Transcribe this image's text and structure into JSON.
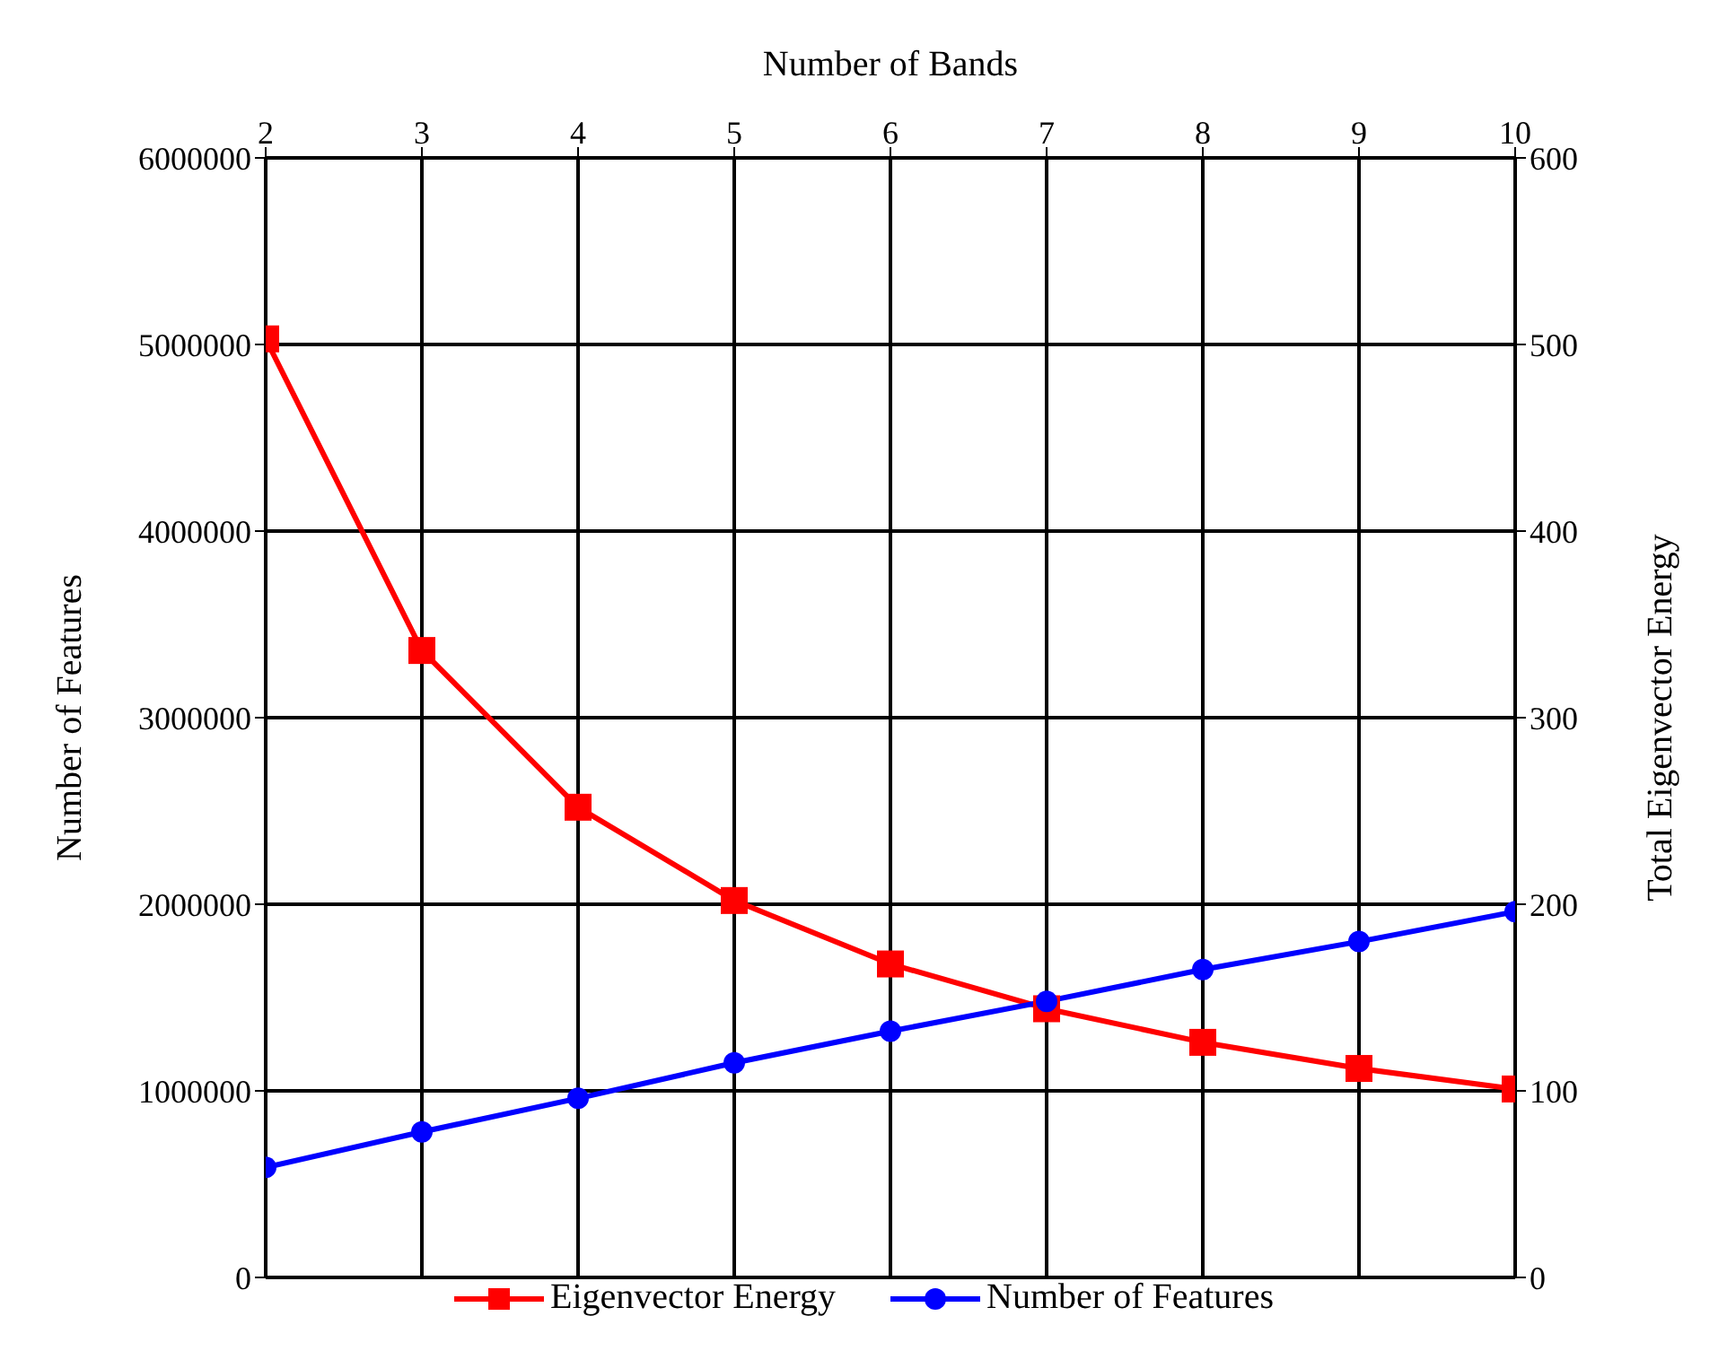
{
  "chart_data": {
    "type": "line",
    "xlabel": "Number of Bands",
    "ylabel": "Number of Features",
    "y2label": "Total Eigenvector Energy",
    "x": [
      2,
      3,
      4,
      5,
      6,
      7,
      8,
      9,
      10
    ],
    "series": [
      {
        "name": "Eigenvector Energy",
        "color": "#ff0000",
        "axis": "y2",
        "marker": "square",
        "values": [
          503,
          336,
          252,
          202,
          168,
          144,
          126,
          112,
          101
        ]
      },
      {
        "name": "Number of Features",
        "color": "#0000ff",
        "marker": "circle",
        "values": [
          590000,
          780000,
          960000,
          1150000,
          1320000,
          1480000,
          1650000,
          1800000,
          1960000
        ]
      }
    ],
    "xlim": [
      2,
      10
    ],
    "xticks": [
      2,
      3,
      4,
      5,
      6,
      7,
      8,
      9,
      10
    ],
    "ylim": [
      0,
      6000000
    ],
    "yticks": [
      0,
      1000000,
      2000000,
      3000000,
      4000000,
      5000000,
      6000000
    ],
    "y2lim": [
      0,
      600
    ],
    "y2ticks": [
      0,
      100,
      200,
      300,
      400,
      500,
      600
    ],
    "grid": true,
    "legend": "bottom",
    "line_style": "solid"
  }
}
